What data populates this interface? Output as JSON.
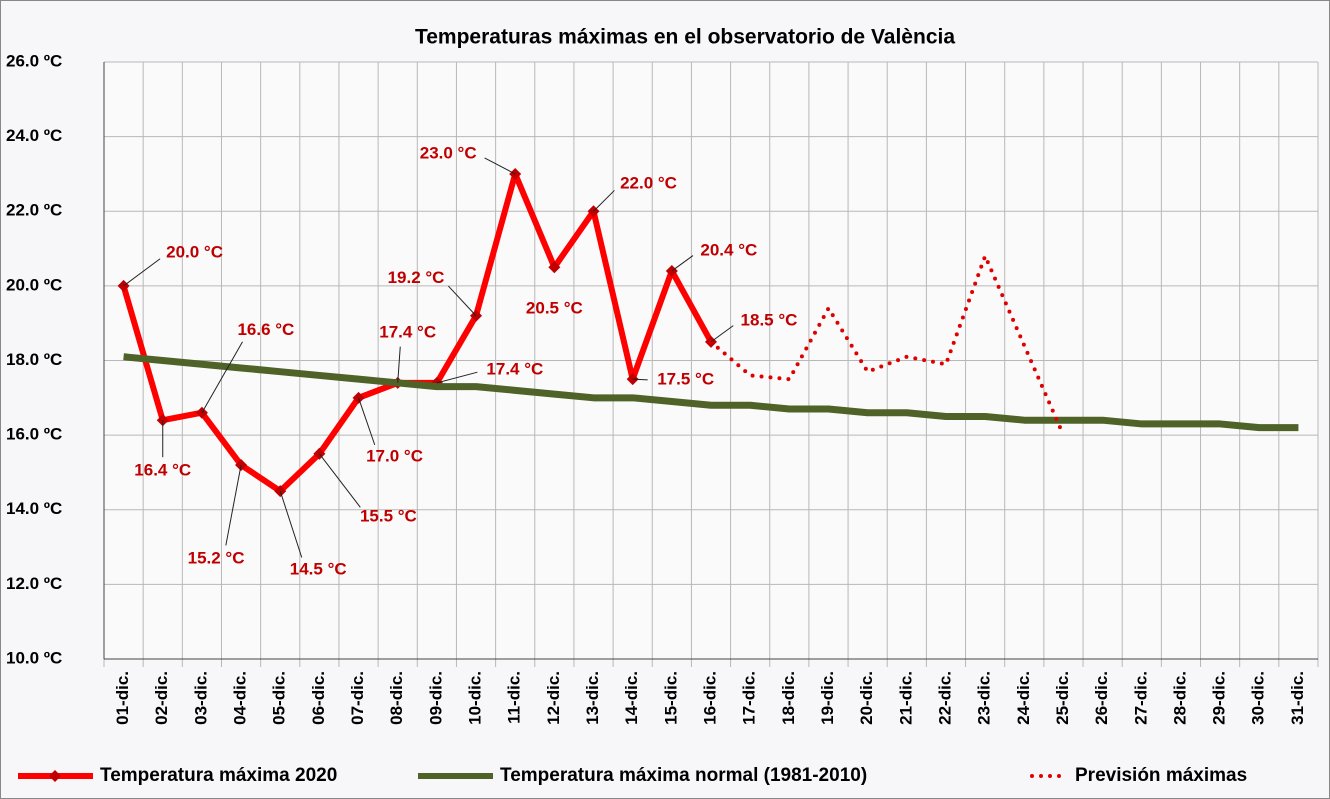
{
  "chart_data": {
    "type": "line",
    "title": "Temperaturas máximas en el observatorio de València",
    "categories": [
      "01-dic.",
      "02-dic.",
      "03-dic.",
      "04-dic.",
      "05-dic.",
      "06-dic.",
      "07-dic.",
      "08-dic.",
      "09-dic.",
      "10-dic.",
      "11-dic.",
      "12-dic.",
      "13-dic.",
      "14-dic.",
      "15-dic.",
      "16-dic.",
      "17-dic.",
      "18-dic.",
      "19-dic.",
      "20-dic.",
      "21-dic.",
      "22-dic.",
      "23-dic.",
      "24-dic.",
      "25-dic.",
      "26-dic.",
      "27-dic.",
      "28-dic.",
      "29-dic.",
      "30-dic.",
      "31-dic."
    ],
    "series": [
      {
        "name": "Temperatura máxima 2020",
        "color": "#ff0000",
        "marker_color": "#c00000",
        "style": "solid",
        "values": [
          20.0,
          16.4,
          16.6,
          15.2,
          14.5,
          15.5,
          17.0,
          17.4,
          17.4,
          19.2,
          23.0,
          20.5,
          22.0,
          17.5,
          20.4,
          18.5,
          null,
          null,
          null,
          null,
          null,
          null,
          null,
          null,
          null,
          null,
          null,
          null,
          null,
          null,
          null
        ],
        "value_labels": [
          "20.0 °C",
          "16.4 °C",
          "16.6 °C",
          "15.2 °C",
          "14.5 °C",
          "15.5 °C",
          "17.0 °C",
          "17.4 °C",
          "17.4 °C",
          "19.2 °C",
          "23.0 °C",
          "20.5 °C",
          "22.0 °C",
          "17.5 °C",
          "20.4 °C",
          "18.5 °C",
          null,
          null,
          null,
          null,
          null,
          null,
          null,
          null,
          null,
          null,
          null,
          null,
          null,
          null,
          null
        ]
      },
      {
        "name": "Temperatura máxima normal (1981-2010)",
        "color": "#4f6228",
        "style": "solid",
        "values": [
          18.1,
          18.0,
          17.9,
          17.8,
          17.7,
          17.6,
          17.5,
          17.4,
          17.3,
          17.3,
          17.2,
          17.1,
          17.0,
          17.0,
          16.9,
          16.8,
          16.8,
          16.7,
          16.7,
          16.6,
          16.6,
          16.5,
          16.5,
          16.4,
          16.4,
          16.4,
          16.3,
          16.3,
          16.3,
          16.2,
          16.2
        ]
      },
      {
        "name": "Previsión máximas",
        "color": "#e00000",
        "style": "dotted",
        "values": [
          null,
          null,
          null,
          null,
          null,
          null,
          null,
          null,
          null,
          null,
          null,
          null,
          null,
          null,
          null,
          18.5,
          17.6,
          17.5,
          19.4,
          17.7,
          18.1,
          17.9,
          20.8,
          18.4,
          16.0,
          null,
          null,
          null,
          null,
          null,
          null
        ]
      }
    ],
    "ylim": [
      10,
      26
    ],
    "yticks": [
      {
        "value": 10,
        "label": "10.0 ºC"
      },
      {
        "value": 12,
        "label": "12.0 ºC"
      },
      {
        "value": 14,
        "label": "14.0 ºC"
      },
      {
        "value": 16,
        "label": "16.0 ºC"
      },
      {
        "value": 18,
        "label": "18.0 ºC"
      },
      {
        "value": 20,
        "label": "20.0 ºC"
      },
      {
        "value": 22,
        "label": "22.0 ºC"
      },
      {
        "value": 24,
        "label": "24.0 ºC"
      },
      {
        "value": 26,
        "label": "26.0 ºC"
      }
    ],
    "grid": true,
    "legend": "bottom"
  }
}
